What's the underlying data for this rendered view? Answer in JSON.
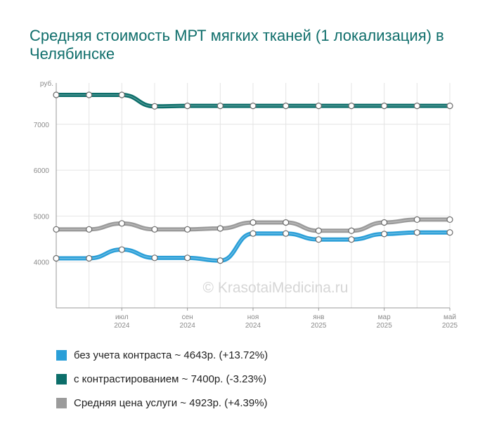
{
  "chart_data": {
    "type": "line",
    "title": "Средняя стоимость МРТ мягких тканей (1 локализация) в Челябинске",
    "ylabel": "руб.",
    "ylim": [
      3000,
      7900
    ],
    "yticks": [
      4000,
      5000,
      6000,
      7000
    ],
    "x": [
      "2024-05",
      "2024-06",
      "2024-07",
      "2024-08",
      "2024-09",
      "2024-10",
      "2024-11",
      "2024-12",
      "2025-01",
      "2025-02",
      "2025-03",
      "2025-04",
      "2025-05"
    ],
    "xticks": [
      {
        "x": "2024-07",
        "month": "июл",
        "year": "2024"
      },
      {
        "x": "2024-09",
        "month": "сен",
        "year": "2024"
      },
      {
        "x": "2024-11",
        "month": "ноя",
        "year": "2024"
      },
      {
        "x": "2025-01",
        "month": "янв",
        "year": "2025"
      },
      {
        "x": "2025-03",
        "month": "мар",
        "year": "2025"
      },
      {
        "x": "2025-05",
        "month": "май",
        "year": "2025"
      }
    ],
    "series": [
      {
        "name": "без учета контраста",
        "color": "#2a9fd8",
        "values": [
          4080,
          4080,
          4270,
          4090,
          4090,
          4030,
          4620,
          4620,
          4490,
          4490,
          4610,
          4643,
          4643
        ]
      },
      {
        "name": "с контрастированием",
        "color": "#0c6e6a",
        "values": [
          7640,
          7640,
          7640,
          7390,
          7400,
          7400,
          7400,
          7400,
          7400,
          7400,
          7400,
          7400,
          7400
        ]
      },
      {
        "name": "Средняя цена услуги",
        "color": "#9b9b9b",
        "values": [
          4710,
          4710,
          4840,
          4710,
          4710,
          4730,
          4860,
          4860,
          4680,
          4680,
          4860,
          4923,
          4923
        ]
      }
    ],
    "watermark": "© KrasotaiMedicina.ru",
    "grid": true
  },
  "legend": [
    {
      "label": "без учета контраста ~ 4643р. (+13.72%)",
      "color": "#2a9fd8"
    },
    {
      "label": "с контрастированием ~ 7400р. (-3.23%)",
      "color": "#0c6e6a"
    },
    {
      "label": "Средняя цена услуги ~ 4923р. (+4.39%)",
      "color": "#9b9b9b"
    }
  ]
}
